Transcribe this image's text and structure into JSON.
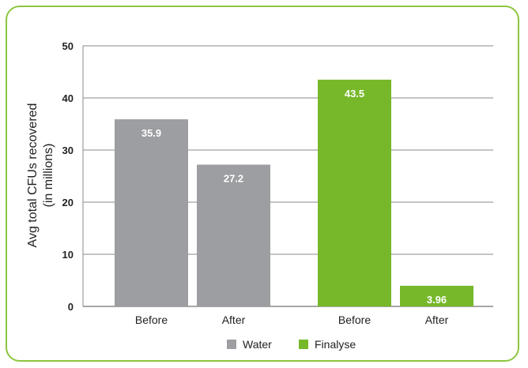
{
  "chart_data": {
    "type": "bar",
    "categories": [
      "Before",
      "After",
      "Before",
      "After"
    ],
    "series": [
      {
        "name": "Water",
        "color": "#9d9ea1",
        "values": [
          35.9,
          27.2,
          null,
          null
        ]
      },
      {
        "name": "Finalyse",
        "color": "#76b82a",
        "values": [
          null,
          null,
          43.5,
          3.96
        ]
      }
    ],
    "value_labels": [
      "35.9",
      "27.2",
      "43.5",
      "3.96"
    ],
    "ylabel_line1": "Avg total CFUs recovered",
    "ylabel_line2": "(in millions)",
    "ylim": [
      0,
      50
    ],
    "yticks": [
      0,
      10,
      20,
      30,
      40,
      50
    ],
    "grid": true,
    "legend_position": "bottom"
  },
  "colors": {
    "frame": "#8cc63f",
    "grid": "#8a8a8a",
    "water": "#9d9ea1",
    "finalyse": "#76b82a"
  }
}
